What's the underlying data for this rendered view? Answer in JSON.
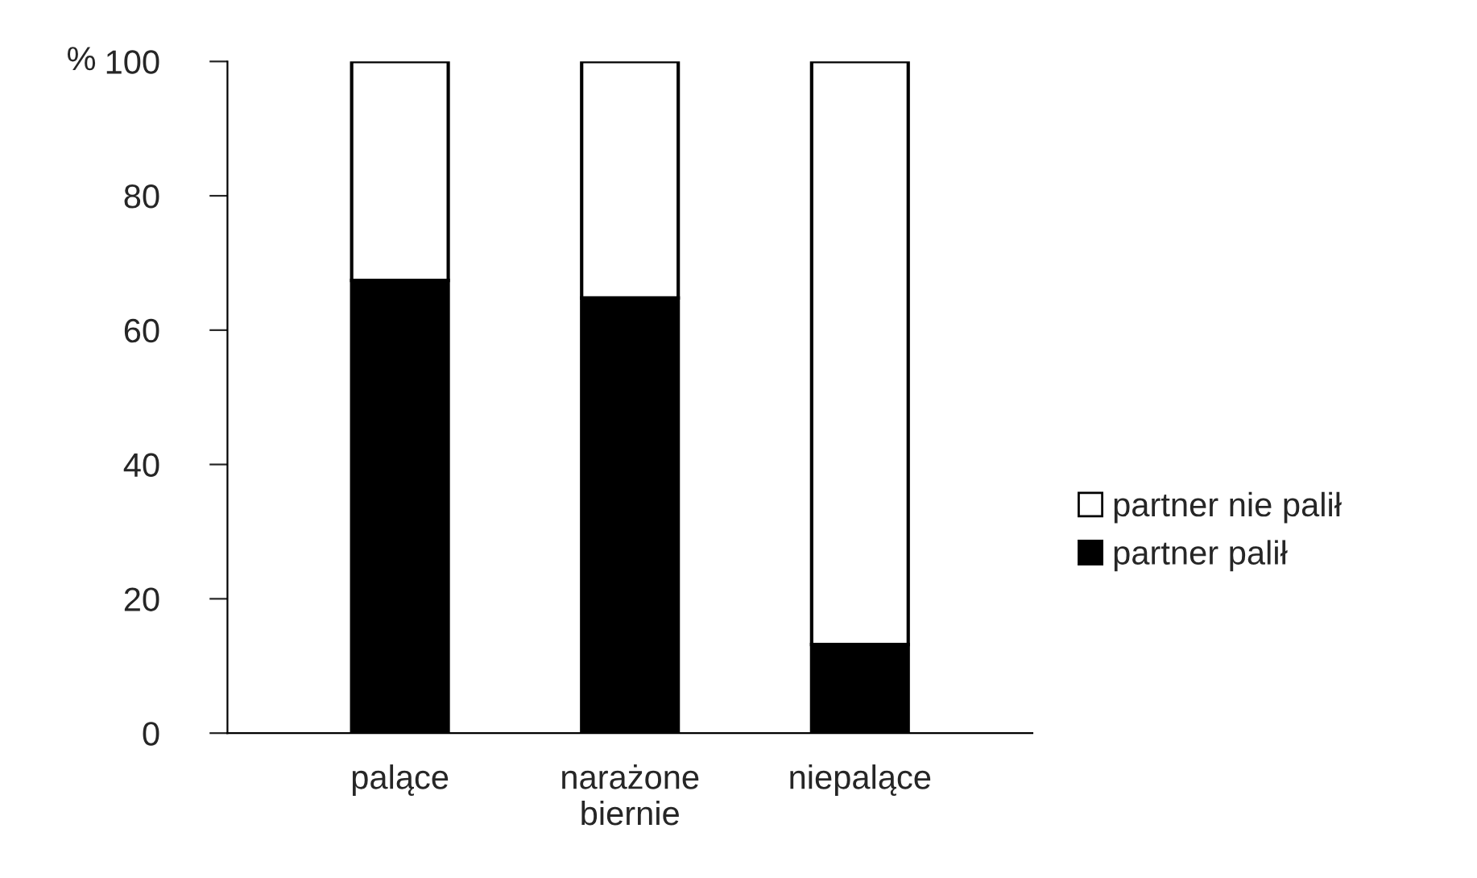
{
  "chart_data": {
    "type": "bar",
    "stacked": true,
    "ylabel": "%",
    "categories": [
      "palące",
      "narażone\nbiernie",
      "niepalące"
    ],
    "series": [
      {
        "name": "partner palił",
        "color": "#000000",
        "values": [
          67.4,
          64.8,
          13.2
        ]
      },
      {
        "name": "partner nie palił",
        "color": "#ffffff",
        "values": [
          32.6,
          35.2,
          86.8
        ]
      }
    ],
    "ylim": [
      0,
      100
    ],
    "yticks": [
      0,
      20,
      40,
      60,
      80,
      100
    ],
    "grid": false,
    "legend": "right"
  }
}
